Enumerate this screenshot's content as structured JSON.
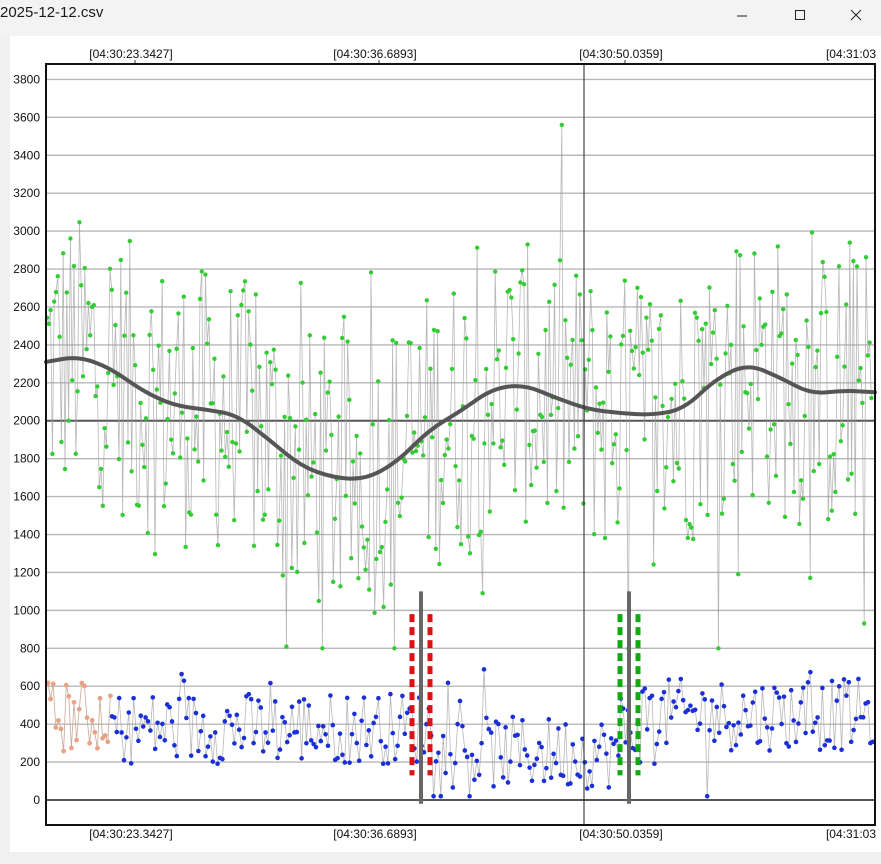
{
  "window": {
    "title": "2025-12-12.csv",
    "buttons": [
      "minimize",
      "maximize",
      "close"
    ]
  },
  "chart_data": {
    "type": "scatter",
    "title": "",
    "xlabel": "",
    "ylabel": "",
    "x_ticks": [
      "[04:30:23.3427]",
      "[04:30:36.6893]",
      "[04:30:50.0359]",
      "[04:31:03"
    ],
    "y_ticks": [
      "0",
      "200",
      "400",
      "600",
      "800",
      "1000",
      "1200",
      "1400",
      "1600",
      "1800",
      "2000",
      "2200",
      "2400",
      "2600",
      "2800",
      "3000",
      "3200",
      "3400",
      "3600",
      "3800"
    ],
    "ylim": [
      -100,
      3880
    ],
    "grid": true,
    "reference_line_y": 2000,
    "cursor_time": "[04:30:50.0359]",
    "series": [
      {
        "color": "#33cc33",
        "marker": "circle",
        "range_y": [
          800,
          3560
        ],
        "center": 2100
      },
      {
        "color": "#1a2fd6",
        "marker": "circle",
        "range_y": [
          20,
          1010
        ],
        "center": 380
      },
      {
        "color": "#e8a385",
        "marker": "circle",
        "range_y": [
          200,
          680
        ],
        "center": 450
      },
      {
        "color": "#555555",
        "marker": "line",
        "values": [
          2310,
          2340,
          2280,
          2160,
          2080,
          2060,
          2030,
          1900,
          1760,
          1700,
          1690,
          1780,
          1950,
          2050,
          2170,
          2190,
          2120,
          2060,
          2040,
          2030,
          2060,
          2220,
          2300,
          2230,
          2140,
          2160,
          2150
        ]
      }
    ],
    "markers": [
      {
        "time": "[04:30:36.6893]+",
        "color": "#dd1111",
        "style": "dashed"
      },
      {
        "time": "[04:30:50.0359]+",
        "color": "#11aa11",
        "style": "dashed"
      }
    ]
  }
}
